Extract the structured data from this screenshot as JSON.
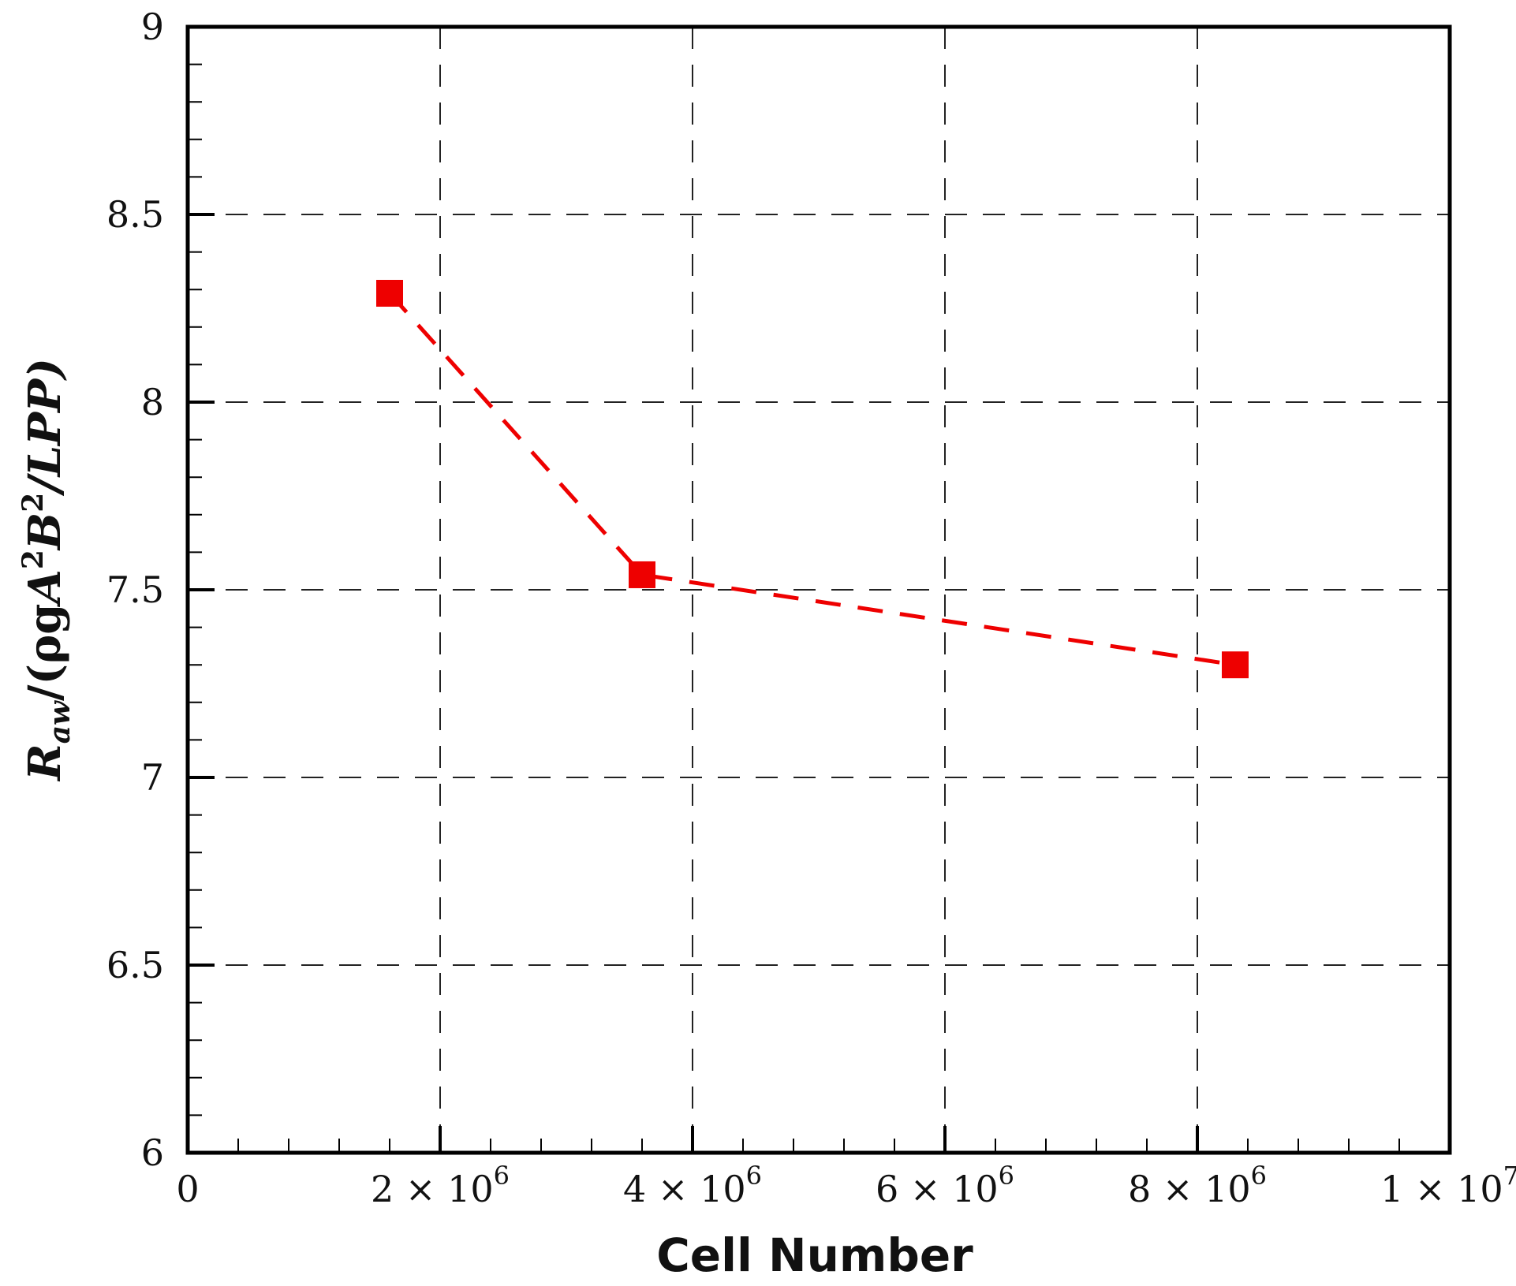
{
  "chart_data": {
    "type": "line",
    "xlabel": "Cell Number",
    "ylabel_parts": {
      "r": "R",
      "r_sub": "aw",
      "open": "/(ρg",
      "a": "A",
      "a_sup": "2",
      "b": "B",
      "b_sup": "2",
      "close": "/LPP)"
    },
    "xlim": [
      0,
      10000000
    ],
    "ylim": [
      6,
      9
    ],
    "x_ticks": [
      {
        "value": 0,
        "label": "0",
        "exp": ""
      },
      {
        "value": 2000000,
        "label": "2 × 10",
        "exp": "6"
      },
      {
        "value": 4000000,
        "label": "4 × 10",
        "exp": "6"
      },
      {
        "value": 6000000,
        "label": "6 × 10",
        "exp": "6"
      },
      {
        "value": 8000000,
        "label": "8 × 10",
        "exp": "6"
      },
      {
        "value": 10000000,
        "label": "1 × 10",
        "exp": "7"
      }
    ],
    "y_ticks": [
      {
        "value": 6,
        "label": "6"
      },
      {
        "value": 6.5,
        "label": "6.5"
      },
      {
        "value": 7,
        "label": "7"
      },
      {
        "value": 7.5,
        "label": "7.5"
      },
      {
        "value": 8,
        "label": "8"
      },
      {
        "value": 8.5,
        "label": "8.5"
      },
      {
        "value": 9,
        "label": "9"
      }
    ],
    "x_minor_step": 400000,
    "y_minor_step": 0.1,
    "grid": true,
    "series": [
      {
        "x": [
          1600000,
          3600000,
          8300000
        ],
        "y": [
          8.29,
          7.54,
          7.3
        ],
        "color": "#ee0000",
        "marker": "square",
        "line_style": "dashed"
      }
    ]
  }
}
